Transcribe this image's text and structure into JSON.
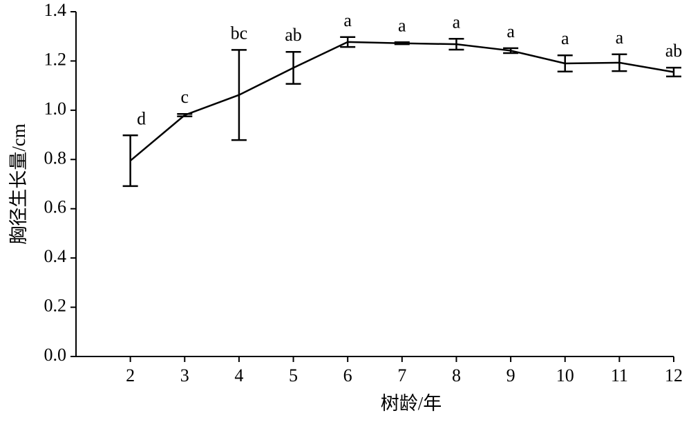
{
  "chart_data": {
    "type": "line",
    "x_label": "树龄/年",
    "y_label": "胸径生长量/cm",
    "x": [
      2,
      3,
      4,
      5,
      6,
      7,
      8,
      9,
      10,
      11,
      12
    ],
    "series": [
      {
        "color": "#000000",
        "values": [
          0.795,
          0.98,
          1.062,
          1.172,
          1.277,
          1.272,
          1.268,
          1.242,
          1.19,
          1.193,
          1.155
        ],
        "errors": [
          0.103,
          0.005,
          0.183,
          0.065,
          0.02,
          0.004,
          0.022,
          0.01,
          0.033,
          0.034,
          0.018
        ],
        "letters": [
          "d",
          "c",
          "bc",
          "ab",
          "a",
          "a",
          "a",
          "a",
          "a",
          "a",
          "ab"
        ]
      }
    ],
    "xlim": [
      1,
      12
    ],
    "xticks": [
      2,
      3,
      4,
      5,
      6,
      7,
      8,
      9,
      10,
      11,
      12
    ],
    "ylim": [
      0,
      1.4
    ],
    "yticks": [
      {
        "value": 0,
        "label": "0.0"
      },
      0.2,
      0.4,
      0.6,
      0.8,
      {
        "value": 1,
        "label": "1.0"
      },
      1.2,
      1.4
    ],
    "grid": false
  }
}
